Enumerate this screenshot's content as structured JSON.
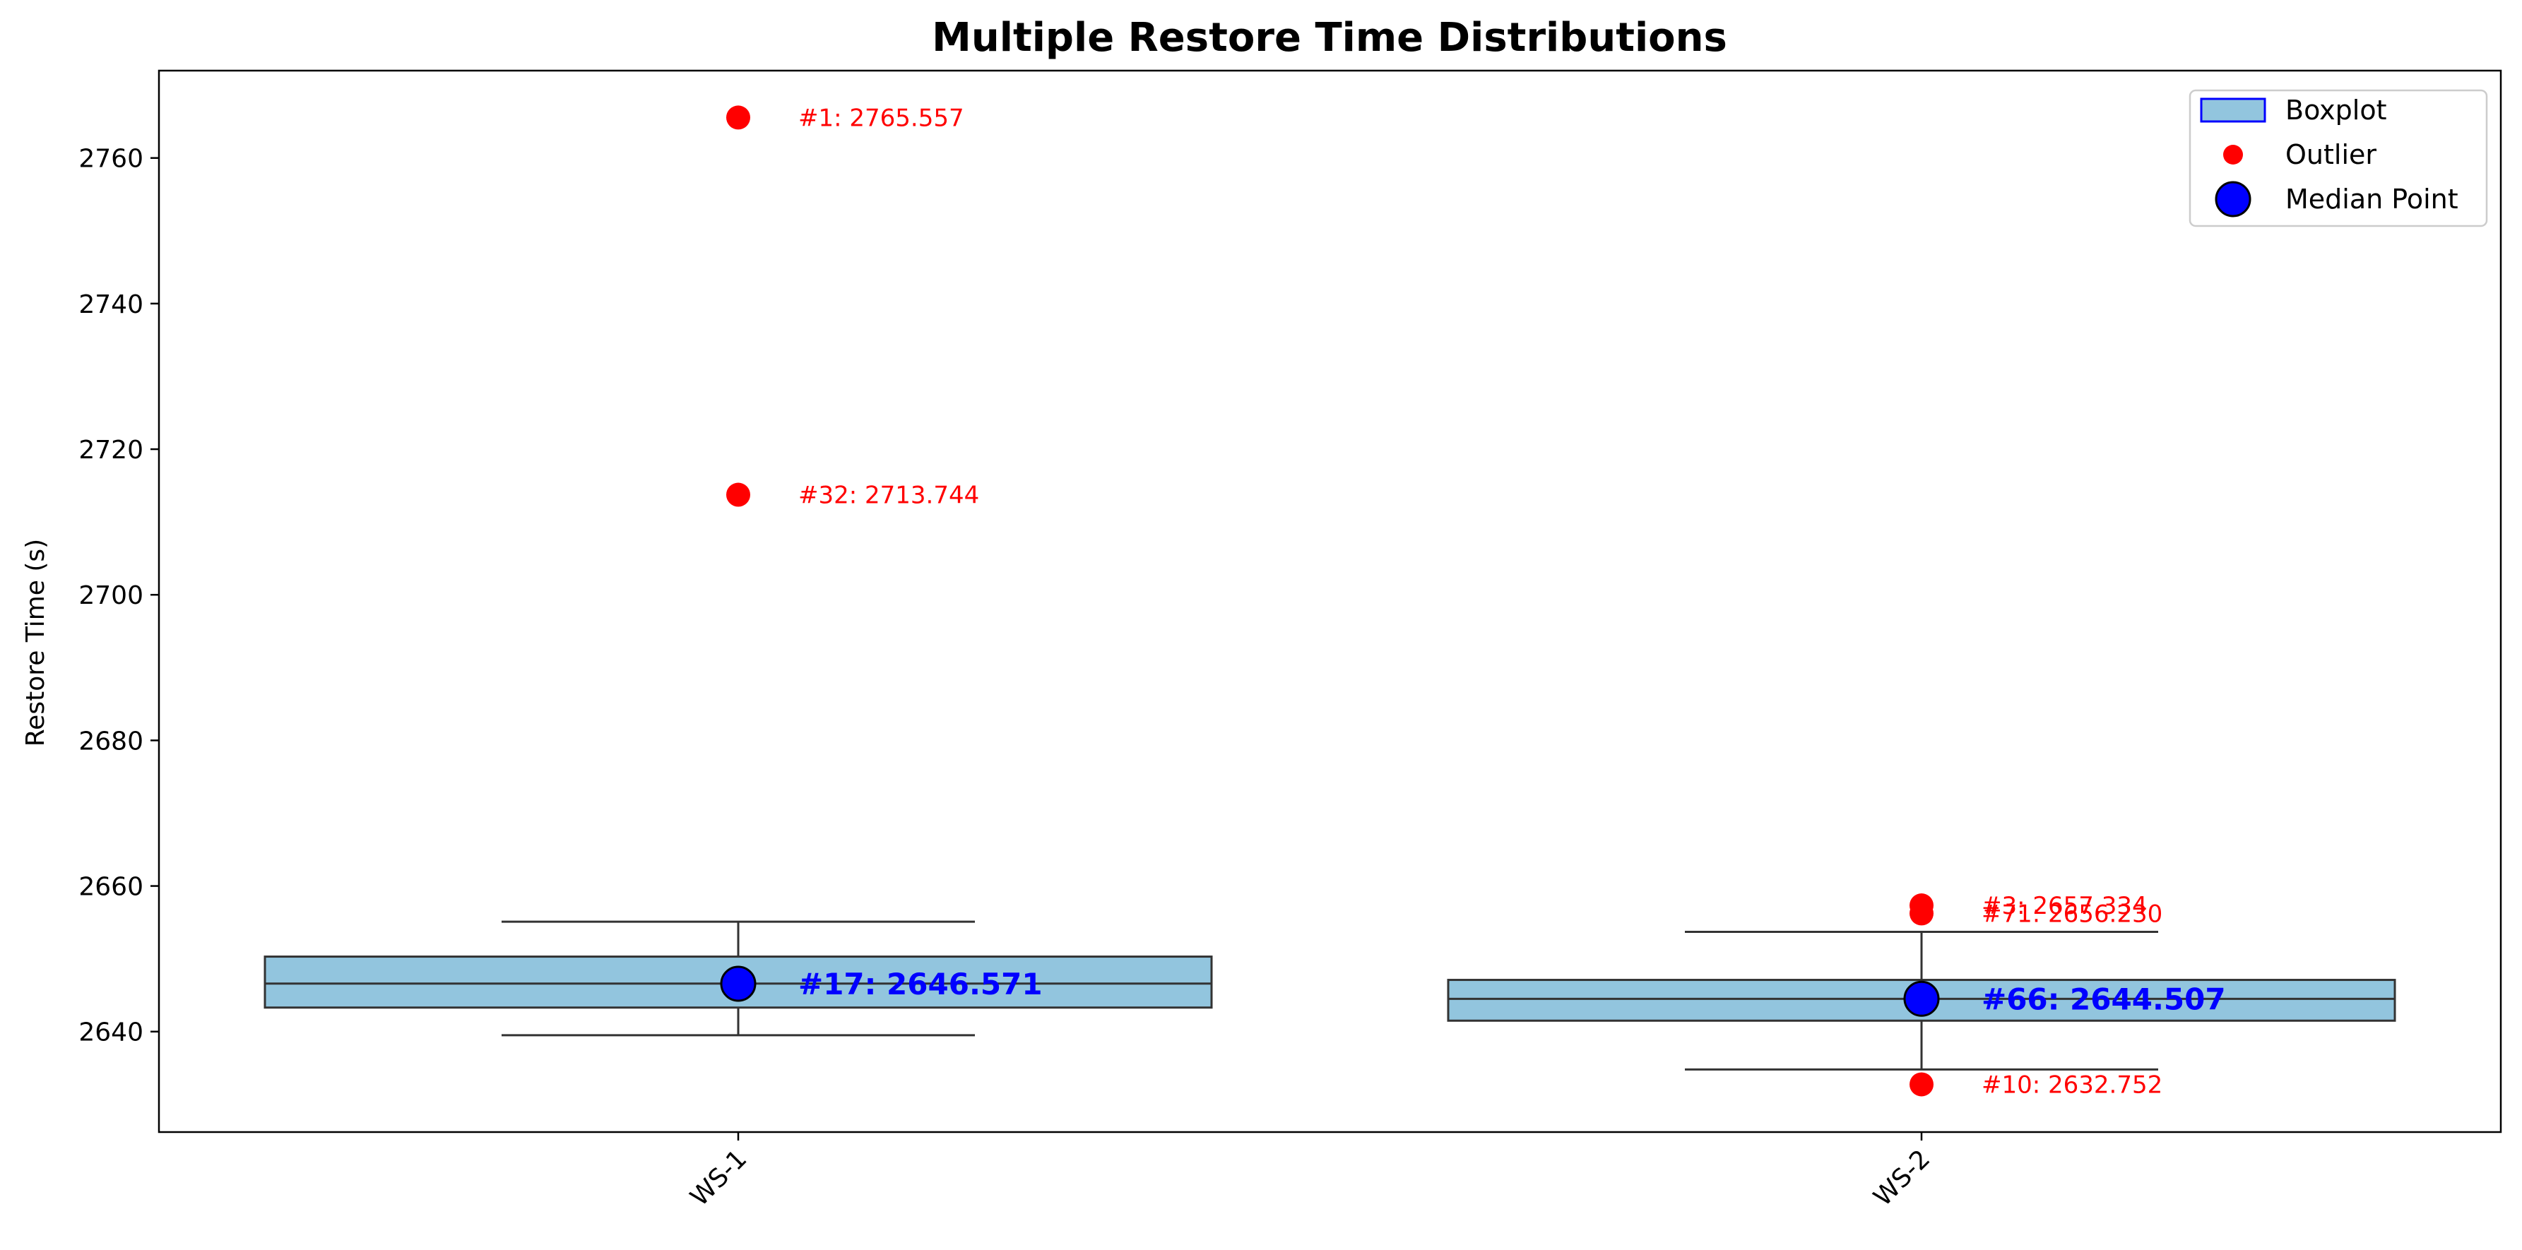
{
  "chart_data": {
    "type": "box",
    "title": "Multiple Restore Time Distributions",
    "xlabel": "",
    "ylabel": "Restore Time (s)",
    "ylim": [
      2626.2,
      2772
    ],
    "yticks": [
      2640,
      2660,
      2680,
      2700,
      2720,
      2740,
      2760
    ],
    "categories": [
      "WS-1",
      "WS-2"
    ],
    "boxes": [
      {
        "category": "WS-1",
        "whisker_low": 2639.5,
        "q1": 2643.3,
        "median": 2646.6,
        "q3": 2650.3,
        "whisker_high": 2655.1,
        "median_point": {
          "label": "#17: 2646.571",
          "value": 2646.571
        },
        "outliers": [
          {
            "label": "#1: 2765.557",
            "value": 2765.557
          },
          {
            "label": "#32: 2713.744",
            "value": 2713.744
          }
        ]
      },
      {
        "category": "WS-2",
        "whisker_low": 2634.8,
        "q1": 2641.5,
        "median": 2644.5,
        "q3": 2647.1,
        "whisker_high": 2653.7,
        "median_point": {
          "label": "#66: 2644.507",
          "value": 2644.507
        },
        "outliers": [
          {
            "label": "#3: 2657.334",
            "value": 2657.334
          },
          {
            "label": "#71: 2656.230",
            "value": 2656.23
          },
          {
            "label": "#10: 2632.752",
            "value": 2632.752
          }
        ]
      }
    ],
    "legend": {
      "placement": "top-right",
      "entries": [
        "Boxplot",
        "Outlier",
        "Median Point"
      ]
    },
    "colors": {
      "box_fill": "#92c5de",
      "box_edge": "#333333",
      "legend_box_edge": "#0000ff",
      "outlier": "#ff0000",
      "median_point": "#0000ff",
      "median_label": "#0000ff"
    },
    "grid": false
  }
}
